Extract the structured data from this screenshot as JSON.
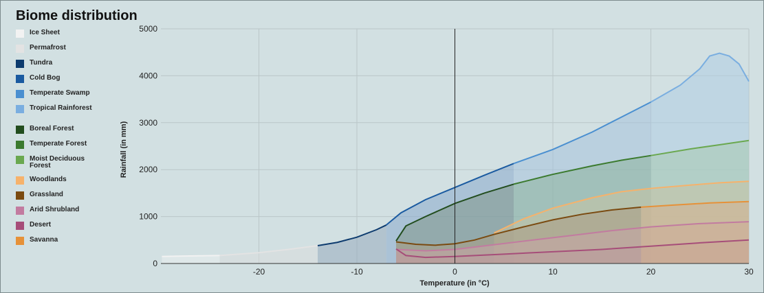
{
  "chart_data": {
    "type": "area",
    "title": "Biome distribution",
    "xlabel": "Temperature (in °C)",
    "ylabel": "Rainfall (in mm)",
    "xlim": [
      -30,
      30
    ],
    "ylim": [
      0,
      5000
    ],
    "x_ticks": [
      -20,
      -10,
      0,
      10,
      20,
      30
    ],
    "x_tick_labels": [
      "-20",
      "-10",
      "0",
      "10",
      "20",
      "30"
    ],
    "y_ticks": [
      0,
      1000,
      2000,
      3000,
      4000,
      5000
    ],
    "y_tick_labels": [
      "0",
      "1000",
      "2000",
      "3000",
      "4000",
      "5000"
    ],
    "grid": true,
    "legend_position": "left",
    "series": [
      {
        "name": "Ice Sheet",
        "color": "#f2f2f2",
        "fill": "#e9eeee",
        "points": [
          [
            -29.9,
            150
          ],
          [
            -27,
            160
          ],
          [
            -24,
            170
          ]
        ]
      },
      {
        "name": "Permafrost",
        "color": "#e3e3e3",
        "fill": "#d9dcdc",
        "points": [
          [
            -24,
            170
          ],
          [
            -20,
            230
          ],
          [
            -17,
            300
          ],
          [
            -14,
            380
          ]
        ]
      },
      {
        "name": "Tundra",
        "color": "#0d3b6e",
        "fill": "#98acbd",
        "points": [
          [
            -14,
            380
          ],
          [
            -12,
            450
          ],
          [
            -10,
            560
          ],
          [
            -8,
            720
          ],
          [
            -7,
            820
          ]
        ]
      },
      {
        "name": "Cold Bog",
        "color": "#1a5aa0",
        "fill": "#88aacc",
        "points": [
          [
            -7,
            820
          ],
          [
            -5.5,
            1080
          ],
          [
            -3,
            1360
          ],
          [
            0,
            1620
          ],
          [
            3,
            1880
          ],
          [
            6,
            2130
          ]
        ]
      },
      {
        "name": "Temperate Swamp",
        "color": "#4a8fd0",
        "fill": "#a5c3dc",
        "points": [
          [
            6,
            2130
          ],
          [
            10,
            2430
          ],
          [
            14,
            2800
          ],
          [
            17,
            3120
          ],
          [
            20,
            3440
          ]
        ]
      },
      {
        "name": "Tropical Rainforest",
        "color": "#7aaee0",
        "fill": "#afcde3",
        "points": [
          [
            20,
            3440
          ],
          [
            23,
            3800
          ],
          [
            25,
            4150
          ],
          [
            26,
            4420
          ],
          [
            27,
            4480
          ],
          [
            28,
            4420
          ],
          [
            29,
            4250
          ],
          [
            30,
            3880
          ]
        ]
      },
      {
        "name": "Boreal Forest",
        "color": "#224d1e",
        "fill": "#7f978a",
        "points": [
          [
            -6,
            480
          ],
          [
            -5,
            800
          ],
          [
            -3,
            1000
          ],
          [
            0,
            1280
          ],
          [
            3,
            1500
          ],
          [
            6,
            1690
          ]
        ]
      },
      {
        "name": "Temperate Forest",
        "color": "#3b7a2e",
        "fill": "#8cb29b",
        "points": [
          [
            6,
            1690
          ],
          [
            10,
            1900
          ],
          [
            14,
            2080
          ],
          [
            17,
            2200
          ],
          [
            20,
            2300
          ]
        ]
      },
      {
        "name": "Moist Deciduous Forest",
        "color": "#6aa84f",
        "fill": "#a8cbb0",
        "points": [
          [
            20,
            2300
          ],
          [
            24,
            2440
          ],
          [
            27,
            2530
          ],
          [
            30,
            2620
          ]
        ]
      },
      {
        "name": "Woodlands",
        "color": "#f6b26b",
        "fill": "#c8c3a2",
        "points": [
          [
            4,
            650
          ],
          [
            7,
            950
          ],
          [
            10,
            1180
          ],
          [
            14,
            1400
          ],
          [
            17,
            1530
          ],
          [
            20,
            1600
          ],
          [
            24,
            1670
          ],
          [
            27,
            1720
          ],
          [
            30,
            1750
          ]
        ]
      },
      {
        "name": "Grassland",
        "color": "#7a4a10",
        "fill": "#a99a82",
        "points": [
          [
            -6,
            460
          ],
          [
            -4,
            410
          ],
          [
            -2,
            390
          ],
          [
            0,
            420
          ],
          [
            2,
            500
          ],
          [
            4,
            620
          ],
          [
            7,
            780
          ],
          [
            10,
            930
          ],
          [
            13,
            1050
          ],
          [
            16,
            1140
          ],
          [
            19,
            1200
          ]
        ]
      },
      {
        "name": "Arid Shrubland",
        "color": "#c27ba0",
        "fill": "#c7a5a6",
        "points": [
          [
            -6,
            300
          ],
          [
            -3,
            270
          ],
          [
            0,
            300
          ],
          [
            4,
            400
          ],
          [
            8,
            500
          ],
          [
            12,
            600
          ],
          [
            16,
            700
          ],
          [
            20,
            780
          ],
          [
            25,
            850
          ],
          [
            30,
            890
          ]
        ]
      },
      {
        "name": "Desert",
        "color": "#a64d79",
        "fill": "#b99a9c",
        "points": [
          [
            -6,
            310
          ],
          [
            -5,
            170
          ],
          [
            -3,
            130
          ],
          [
            0,
            150
          ],
          [
            5,
            200
          ],
          [
            10,
            250
          ],
          [
            15,
            300
          ],
          [
            20,
            370
          ],
          [
            25,
            440
          ],
          [
            30,
            500
          ]
        ]
      },
      {
        "name": "Savanna",
        "color": "#e69138",
        "fill": "#d3b08e",
        "points": [
          [
            19,
            1200
          ],
          [
            22,
            1240
          ],
          [
            26,
            1290
          ],
          [
            30,
            1320
          ]
        ]
      }
    ],
    "zero_line_x": 0
  }
}
